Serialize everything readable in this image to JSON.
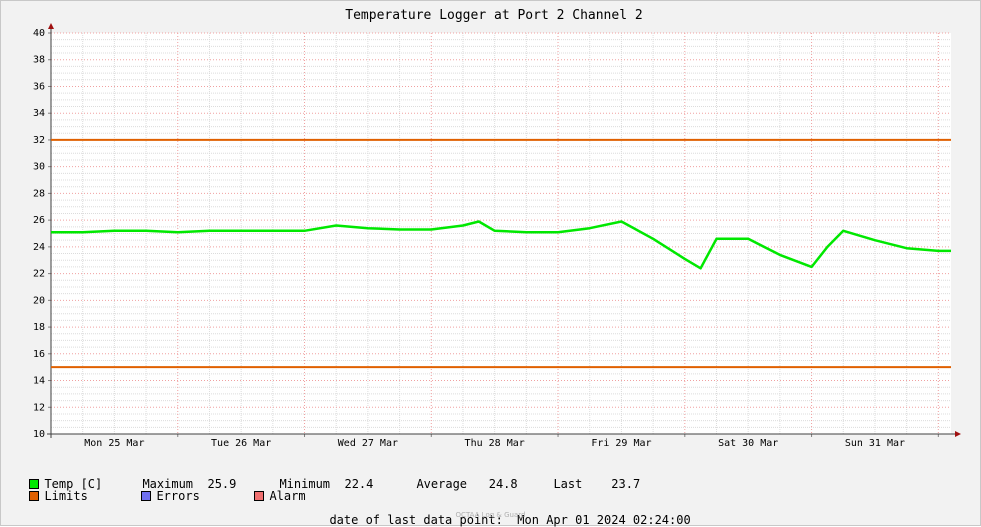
{
  "chart_data": {
    "type": "line",
    "title": "Temperature Logger at Port 2 Channel 2",
    "ylim": [
      10,
      40
    ],
    "ytick_step": 2,
    "y_ticks": [
      "10",
      "12",
      "14",
      "16",
      "18",
      "20",
      "22",
      "24",
      "26",
      "28",
      "30",
      "32",
      "34",
      "36",
      "38",
      "40"
    ],
    "x_range_days": [
      "2024-03-25 00:00",
      "2024-04-01 02:24"
    ],
    "x_tick_labels": [
      "Mon 25 Mar",
      "Tue 26 Mar",
      "Wed 27 Mar",
      "Thu 28 Mar",
      "Fri 29 Mar",
      "Sat 30 Mar",
      "Sun 31 Mar"
    ],
    "grid": true,
    "series": [
      {
        "name": "Temp [C]",
        "color": "#00e800",
        "x": [
          "2024-03-25 00:00",
          "2024-03-25 06:00",
          "2024-03-25 12:00",
          "2024-03-25 18:00",
          "2024-03-26 00:00",
          "2024-03-26 06:00",
          "2024-03-26 12:00",
          "2024-03-26 18:00",
          "2024-03-27 00:00",
          "2024-03-27 06:00",
          "2024-03-27 12:00",
          "2024-03-27 18:00",
          "2024-03-28 00:00",
          "2024-03-28 06:00",
          "2024-03-28 09:00",
          "2024-03-28 12:00",
          "2024-03-28 18:00",
          "2024-03-29 00:00",
          "2024-03-29 06:00",
          "2024-03-29 12:00",
          "2024-03-29 18:00",
          "2024-03-30 00:00",
          "2024-03-30 03:00",
          "2024-03-30 06:00",
          "2024-03-30 12:00",
          "2024-03-30 18:00",
          "2024-03-31 00:00",
          "2024-03-31 03:00",
          "2024-03-31 06:00",
          "2024-03-31 12:00",
          "2024-03-31 18:00",
          "2024-04-01 00:00",
          "2024-04-01 02:24"
        ],
        "y": [
          25.1,
          25.1,
          25.2,
          25.2,
          25.1,
          25.2,
          25.2,
          25.2,
          25.2,
          25.6,
          25.4,
          25.3,
          25.3,
          25.6,
          25.9,
          25.2,
          25.1,
          25.1,
          25.4,
          25.9,
          24.6,
          23.1,
          22.4,
          24.6,
          24.6,
          23.4,
          22.5,
          24.0,
          25.2,
          24.5,
          23.9,
          23.7,
          23.7
        ]
      }
    ],
    "limits": {
      "label": "Limits",
      "color": "#e06000",
      "upper": 32,
      "lower": 15
    }
  },
  "legend": {
    "temp_label": "Temp [C]",
    "temp_color": "#00e800",
    "maximum_label": "Maximum",
    "maximum_value": "25.9",
    "minimum_label": "Minimum",
    "minimum_value": "22.4",
    "average_label": "Average",
    "average_value": "24.8",
    "last_label": "Last",
    "last_value": "23.7",
    "limits_label": "Limits",
    "limits_color": "#e06000",
    "errors_label": "Errors",
    "errors_color": "#7070f0",
    "alarm_label": "Alarm",
    "alarm_color": "#f07070"
  },
  "footer": {
    "date_label": "date of last data point:",
    "date_value": "Mon Apr 01 2024 02:24:00",
    "watermark": "OCTAA Log & Guard"
  }
}
